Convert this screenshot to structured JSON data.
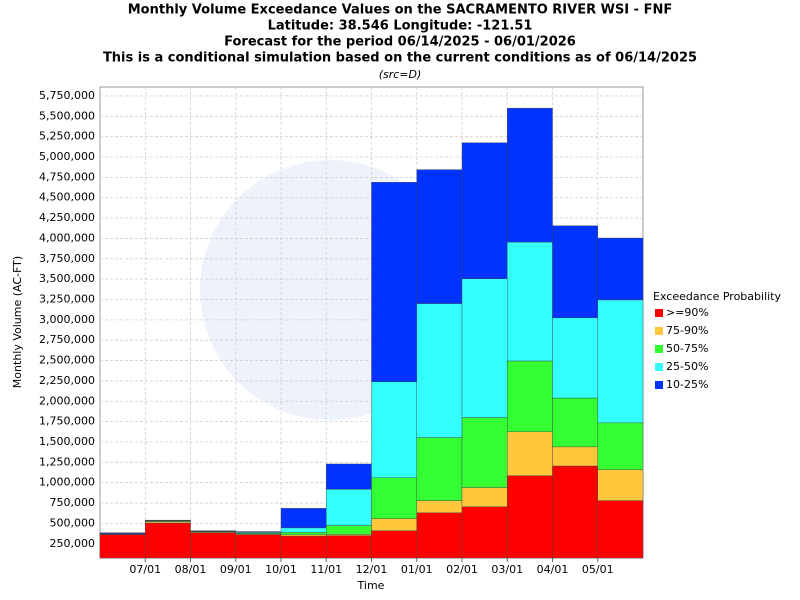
{
  "chart_data": {
    "type": "stacked_bar",
    "title": [
      "Monthly Volume Exceedance Values on the SACRAMENTO RIVER WSI - FNF",
      "Latitude: 38.546 Longitude: -121.51",
      "Forecast for the period 06/14/2025 - 06/01/2026",
      "This is a conditional simulation based on the current conditions as of 06/14/2025"
    ],
    "subtitle": "(src=D)",
    "x_label": "Time",
    "y_label": "Monthly Volume (AC-FT)",
    "legend_title": "Exceedance Probability",
    "categories": [
      null,
      "07/01",
      "08/01",
      "09/01",
      "10/01",
      "11/01",
      "12/01",
      "01/01",
      "02/01",
      "03/01",
      "04/01",
      "05/01"
    ],
    "series": [
      {
        "name": ">=90%",
        "color": "#ff0000",
        "values": [
          360000,
          505000,
          385000,
          360000,
          345000,
          350000,
          410000,
          630000,
          705000,
          1085000,
          1205000,
          780000
        ]
      },
      {
        "name": "75-90%",
        "color": "#ffc83c",
        "values": [
          5000,
          15000,
          10000,
          10000,
          15000,
          15000,
          150000,
          150000,
          235000,
          540000,
          235000,
          380000
        ]
      },
      {
        "name": "50-75%",
        "color": "#33ff33",
        "values": [
          5000,
          10000,
          5000,
          10000,
          30000,
          110000,
          500000,
          775000,
          860000,
          870000,
          600000,
          575000
        ]
      },
      {
        "name": "25-50%",
        "color": "#33ffff",
        "values": [
          5000,
          5000,
          5000,
          10000,
          55000,
          445000,
          1180000,
          1645000,
          1705000,
          1460000,
          985000,
          1510000
        ]
      },
      {
        "name": "10-25%",
        "color": "#0033ff",
        "values": [
          10000,
          5000,
          5000,
          10000,
          240000,
          310000,
          2450000,
          1645000,
          1670000,
          1645000,
          1130000,
          760000
        ]
      }
    ],
    "ylim": [
      75000,
      5860000
    ],
    "yticks": [
      {
        "value": 250000,
        "label": "250,000"
      },
      {
        "value": 500000,
        "label": "500,000"
      },
      {
        "value": 750000,
        "label": "750,000"
      },
      {
        "value": 1000000,
        "label": "1,000,000"
      },
      {
        "value": 1250000,
        "label": "1,250,000"
      },
      {
        "value": 1500000,
        "label": "1,500,000"
      },
      {
        "value": 1750000,
        "label": "1,750,000"
      },
      {
        "value": 2000000,
        "label": "2,000,000"
      },
      {
        "value": 2250000,
        "label": "2,250,000"
      },
      {
        "value": 2500000,
        "label": "2,500,000"
      },
      {
        "value": 2750000,
        "label": "2,750,000"
      },
      {
        "value": 3000000,
        "label": "3,000,000"
      },
      {
        "value": 3250000,
        "label": "3,250,000"
      },
      {
        "value": 3500000,
        "label": "3,500,000"
      },
      {
        "value": 3750000,
        "label": "3,750,000"
      },
      {
        "value": 4000000,
        "label": "4,000,000"
      },
      {
        "value": 4250000,
        "label": "4,250,000"
      },
      {
        "value": 4500000,
        "label": "4,500,000"
      },
      {
        "value": 4750000,
        "label": "4,750,000"
      },
      {
        "value": 5000000,
        "label": "5,000,000"
      },
      {
        "value": 5250000,
        "label": "5,250,000"
      },
      {
        "value": 5500000,
        "label": "5,500,000"
      },
      {
        "value": 5750000,
        "label": "5,750,000"
      }
    ],
    "grid": true
  }
}
